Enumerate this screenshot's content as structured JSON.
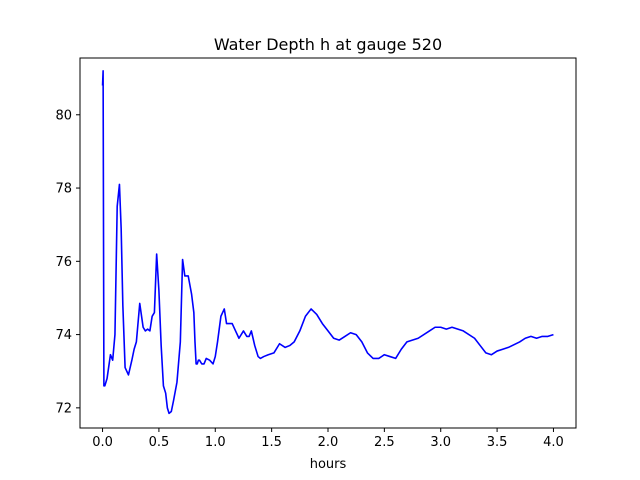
{
  "chart_data": {
    "type": "line",
    "title": "Water Depth h at gauge 520",
    "xlabel": "hours",
    "ylabel": "",
    "xlim": [
      -0.2,
      4.2
    ],
    "ylim": [
      71.45,
      81.55
    ],
    "xticks": [
      0.0,
      0.5,
      1.0,
      1.5,
      2.0,
      2.5,
      3.0,
      3.5,
      4.0
    ],
    "xtick_labels": [
      "0.0",
      "0.5",
      "1.0",
      "1.5",
      "2.0",
      "2.5",
      "3.0",
      "3.5",
      "4.0"
    ],
    "yticks": [
      72,
      74,
      76,
      78,
      80
    ],
    "ytick_labels": [
      "72",
      "74",
      "76",
      "78",
      "80"
    ],
    "grid": false,
    "legend": "none",
    "series": [
      {
        "color": "#0000ff",
        "x": [
          0.0,
          0.005,
          0.012,
          0.02,
          0.04,
          0.07,
          0.09,
          0.11,
          0.13,
          0.15,
          0.165,
          0.18,
          0.2,
          0.23,
          0.26,
          0.28,
          0.3,
          0.33,
          0.36,
          0.38,
          0.4,
          0.42,
          0.44,
          0.46,
          0.48,
          0.5,
          0.52,
          0.54,
          0.56,
          0.575,
          0.59,
          0.61,
          0.63,
          0.66,
          0.69,
          0.71,
          0.73,
          0.76,
          0.79,
          0.81,
          0.82,
          0.83,
          0.84,
          0.85,
          0.86,
          0.88,
          0.9,
          0.92,
          0.95,
          0.98,
          1.0,
          1.02,
          1.05,
          1.08,
          1.1,
          1.12,
          1.15,
          1.18,
          1.21,
          1.25,
          1.28,
          1.3,
          1.32,
          1.35,
          1.38,
          1.4,
          1.43,
          1.47,
          1.52,
          1.57,
          1.62,
          1.66,
          1.7,
          1.75,
          1.8,
          1.85,
          1.9,
          1.95,
          2.0,
          2.05,
          2.1,
          2.15,
          2.2,
          2.25,
          2.3,
          2.35,
          2.4,
          2.45,
          2.5,
          2.55,
          2.6,
          2.65,
          2.7,
          2.8,
          2.9,
          2.95,
          3.0,
          3.05,
          3.1,
          3.2,
          3.3,
          3.35,
          3.4,
          3.45,
          3.5,
          3.55,
          3.6,
          3.7,
          3.75,
          3.8,
          3.85,
          3.9,
          3.95,
          4.0
        ],
        "y": [
          80.8,
          81.2,
          72.6,
          72.6,
          72.8,
          73.45,
          73.3,
          74.0,
          77.5,
          78.1,
          76.9,
          74.8,
          73.1,
          72.9,
          73.3,
          73.6,
          73.8,
          74.85,
          74.2,
          74.1,
          74.15,
          74.1,
          74.5,
          74.6,
          76.2,
          75.2,
          73.7,
          72.6,
          72.4,
          72.0,
          71.85,
          71.9,
          72.2,
          72.7,
          73.8,
          76.05,
          75.6,
          75.6,
          75.1,
          74.6,
          73.8,
          73.2,
          73.2,
          73.3,
          73.3,
          73.2,
          73.2,
          73.35,
          73.3,
          73.2,
          73.4,
          73.8,
          74.5,
          74.7,
          74.3,
          74.3,
          74.3,
          74.1,
          73.9,
          74.1,
          73.95,
          73.95,
          74.1,
          73.7,
          73.4,
          73.35,
          73.4,
          73.45,
          73.5,
          73.75,
          73.65,
          73.7,
          73.8,
          74.1,
          74.5,
          74.7,
          74.55,
          74.3,
          74.1,
          73.9,
          73.85,
          73.95,
          74.05,
          74.0,
          73.8,
          73.5,
          73.35,
          73.35,
          73.45,
          73.4,
          73.35,
          73.6,
          73.8,
          73.9,
          74.1,
          74.2,
          74.2,
          74.15,
          74.2,
          74.1,
          73.9,
          73.7,
          73.5,
          73.45,
          73.55,
          73.6,
          73.65,
          73.8,
          73.9,
          73.95,
          73.9,
          73.95,
          73.95,
          74.0
        ]
      }
    ]
  }
}
